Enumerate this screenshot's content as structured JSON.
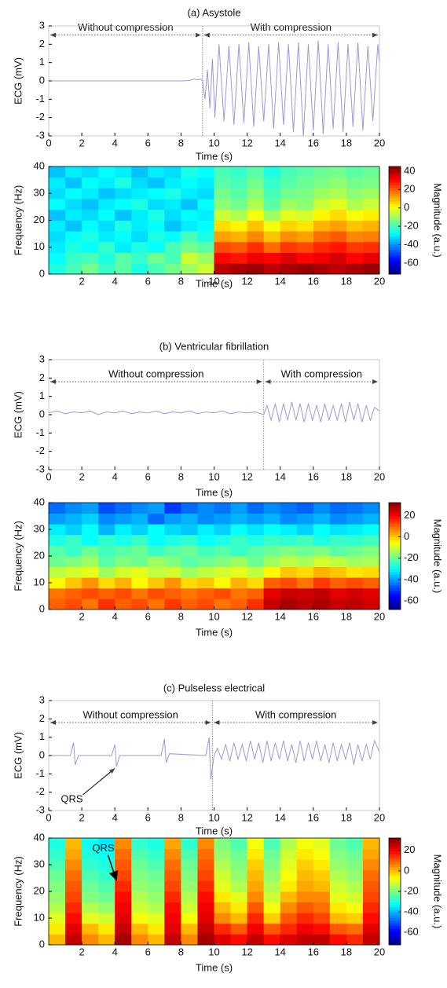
{
  "chart_data": [
    {
      "type": "line",
      "title": "(a) Asystole",
      "xlabel": "Time (s)",
      "ylabel": "ECG (mV)",
      "color": "#9a9ad8",
      "xlim": [
        0,
        20
      ],
      "ylim": [
        -3,
        3
      ],
      "xticks": [
        0,
        2,
        4,
        6,
        8,
        10,
        12,
        14,
        16,
        18,
        20
      ],
      "yticks": [
        -3,
        -2,
        -1,
        0,
        1,
        2,
        3
      ],
      "separator_x": 9.3,
      "annotations": [
        {
          "text": "Without compression",
          "x_start": 0,
          "x_end": 9.3,
          "y": 2.5
        },
        {
          "text": "With compression",
          "x_start": 9.3,
          "x_end": 20,
          "y": 2.5
        }
      ],
      "x": [
        0,
        4,
        8,
        8.5,
        8.8,
        9.0,
        9.2,
        9.3,
        9.45,
        9.6,
        9.75,
        9.9,
        10.05,
        10.3,
        10.6,
        10.9,
        11.2,
        11.5,
        11.8,
        12.1,
        12.4,
        12.7,
        13.0,
        13.3,
        13.6,
        13.9,
        14.2,
        14.5,
        14.8,
        15.1,
        15.4,
        15.7,
        16.0,
        16.3,
        16.6,
        16.9,
        17.2,
        17.5,
        17.8,
        18.1,
        18.4,
        18.7,
        19.0,
        19.3,
        19.6,
        19.9,
        20
      ],
      "values": [
        0,
        0,
        0,
        0.02,
        0.1,
        0.05,
        0.1,
        0,
        -1,
        0.6,
        -1.5,
        1.2,
        -2,
        2,
        -2.2,
        1.9,
        -2.4,
        2,
        -2.3,
        2.1,
        -2.5,
        1.9,
        -2.2,
        2,
        -2.6,
        2.1,
        -2.4,
        2,
        -2.8,
        2.1,
        -3,
        2,
        -2.7,
        2.2,
        -2.9,
        2,
        -2.6,
        2.1,
        -2.8,
        2,
        -2.5,
        2.1,
        -2.7,
        1.9,
        -2.2,
        2,
        1
      ]
    },
    {
      "type": "heatmap",
      "xlabel": "Time (s)",
      "ylabel": "Frequency (Hz)",
      "colormap": "jet",
      "xlim": [
        0,
        20
      ],
      "ylim": [
        0,
        40
      ],
      "xticks": [
        2,
        4,
        6,
        8,
        10,
        12,
        14,
        16,
        18,
        20
      ],
      "yticks": [
        0,
        10,
        20,
        30,
        40
      ],
      "x_edges": [
        0,
        1,
        2,
        3,
        4,
        5,
        6,
        7,
        8,
        9,
        10,
        11,
        12,
        13,
        14,
        15,
        16,
        17,
        18,
        19,
        20
      ],
      "y_edges": [
        0,
        4,
        8,
        12,
        16,
        20,
        24,
        28,
        32,
        36,
        40
      ],
      "colorbar": {
        "label": "Magnitude (a.u.)",
        "lim": [
          -72,
          45
        ],
        "ticks": [
          40,
          20,
          0,
          -20,
          -40,
          -60
        ]
      },
      "values": [
        [
          -25,
          -20,
          -15,
          -22,
          -18,
          -25,
          -20,
          -15,
          -10,
          -5,
          38,
          40,
          42,
          38,
          40,
          42,
          40,
          38,
          40,
          42
        ],
        [
          -28,
          -22,
          -20,
          -25,
          -18,
          -22,
          -15,
          -20,
          -5,
          -10,
          30,
          28,
          32,
          30,
          34,
          30,
          32,
          35,
          30,
          33
        ],
        [
          -30,
          -25,
          -28,
          -22,
          -30,
          -25,
          -28,
          -20,
          -15,
          -18,
          22,
          20,
          25,
          18,
          24,
          22,
          26,
          28,
          24,
          25
        ],
        [
          -32,
          -28,
          -25,
          -30,
          -28,
          -32,
          -25,
          -28,
          -20,
          -25,
          12,
          10,
          15,
          8,
          14,
          12,
          18,
          20,
          15,
          16
        ],
        [
          -30,
          -35,
          -28,
          -32,
          -25,
          -30,
          -28,
          -35,
          -30,
          -28,
          5,
          2,
          8,
          0,
          6,
          4,
          10,
          12,
          8,
          10
        ],
        [
          -35,
          -30,
          -32,
          -28,
          -35,
          -30,
          -25,
          -32,
          -28,
          -30,
          -5,
          -8,
          0,
          -10,
          -2,
          -4,
          2,
          5,
          0,
          3
        ],
        [
          -28,
          -32,
          -35,
          -30,
          -28,
          -25,
          -32,
          -30,
          -35,
          -28,
          -12,
          -15,
          -8,
          -18,
          -10,
          -12,
          -5,
          -2,
          -8,
          -5
        ],
        [
          -32,
          -28,
          -30,
          -35,
          -32,
          -30,
          -28,
          -25,
          -30,
          -32,
          -15,
          -18,
          -12,
          -20,
          -15,
          -14,
          -10,
          -8,
          -12,
          -10
        ],
        [
          -30,
          -35,
          -28,
          -30,
          -25,
          -32,
          -35,
          -30,
          -28,
          -30,
          -18,
          -20,
          -15,
          -22,
          -18,
          -16,
          -14,
          -12,
          -15,
          -14
        ],
        [
          -35,
          -30,
          -32,
          -28,
          -30,
          -35,
          -30,
          -32,
          -25,
          -28,
          -20,
          -22,
          -18,
          -25,
          -20,
          -18,
          -16,
          -15,
          -18,
          -16
        ]
      ]
    },
    {
      "type": "line",
      "title": "(b) Ventricular fibrillation",
      "xlabel": "Time (s)",
      "ylabel": "ECG (mV)",
      "color": "#9a9ad8",
      "xlim": [
        0,
        20
      ],
      "ylim": [
        -3,
        3
      ],
      "xticks": [
        0,
        2,
        4,
        6,
        8,
        10,
        12,
        14,
        16,
        18,
        20
      ],
      "yticks": [
        -3,
        -2,
        -1,
        0,
        1,
        2,
        3
      ],
      "separator_x": 13,
      "annotations": [
        {
          "text": "Without compression",
          "x_start": 0,
          "x_end": 13,
          "y": 1.8
        },
        {
          "text": "With compression",
          "x_start": 13,
          "x_end": 20,
          "y": 1.8
        }
      ],
      "x": [
        0,
        0.5,
        1,
        1.5,
        2,
        2.5,
        3,
        3.5,
        4,
        4.5,
        5,
        5.5,
        6,
        6.5,
        7,
        7.5,
        8,
        8.5,
        9,
        9.5,
        10,
        10.5,
        11,
        11.5,
        12,
        12.5,
        13.0,
        13.2,
        13.45,
        13.7,
        13.95,
        14.2,
        14.45,
        14.7,
        14.95,
        15.2,
        15.45,
        15.7,
        15.95,
        16.2,
        16.45,
        16.7,
        16.95,
        17.2,
        17.45,
        17.7,
        17.95,
        18.2,
        18.45,
        18.7,
        18.95,
        19.2,
        19.45,
        19.7,
        20
      ],
      "values": [
        0.1,
        0.2,
        0.05,
        0.15,
        0.1,
        0.2,
        0.0,
        0.15,
        0.1,
        0.2,
        0.05,
        0.15,
        0.1,
        0.2,
        0.05,
        0.15,
        0.1,
        0.2,
        0.05,
        0.15,
        0.1,
        0.2,
        0.05,
        0.15,
        0.1,
        0.15,
        0.0,
        0.5,
        -0.3,
        0.6,
        -0.4,
        0.6,
        -0.3,
        0.7,
        -0.3,
        0.6,
        -0.4,
        0.6,
        -0.3,
        0.5,
        -0.4,
        0.6,
        -0.3,
        0.5,
        -0.3,
        0.6,
        -0.4,
        0.7,
        -0.3,
        0.6,
        -0.4,
        0.5,
        -0.3,
        0.4,
        0.2
      ]
    },
    {
      "type": "heatmap",
      "xlabel": "Time (s)",
      "ylabel": "Frequency (Hz)",
      "colormap": "jet",
      "xlim": [
        0,
        20
      ],
      "ylim": [
        0,
        40
      ],
      "xticks": [
        2,
        4,
        6,
        8,
        10,
        12,
        14,
        16,
        18,
        20
      ],
      "yticks": [
        0,
        10,
        20,
        30,
        40
      ],
      "x_edges": [
        0,
        1,
        2,
        3,
        4,
        5,
        6,
        7,
        8,
        9,
        10,
        11,
        12,
        13,
        14,
        15,
        16,
        17,
        18,
        19,
        20
      ],
      "y_edges": [
        0,
        4,
        8,
        12,
        16,
        20,
        24,
        28,
        32,
        36,
        40
      ],
      "colorbar": {
        "label": "Magnitude (a.u.)",
        "lim": [
          -68,
          32
        ],
        "ticks": [
          20,
          0,
          -20,
          -40,
          -60
        ]
      },
      "values": [
        [
          10,
          12,
          8,
          15,
          10,
          12,
          8,
          14,
          10,
          12,
          8,
          10,
          15,
          25,
          28,
          26,
          28,
          25,
          26,
          24
        ],
        [
          8,
          10,
          12,
          10,
          12,
          8,
          12,
          10,
          8,
          10,
          12,
          8,
          10,
          22,
          25,
          24,
          26,
          22,
          24,
          22
        ],
        [
          -5,
          0,
          5,
          -2,
          2,
          -5,
          0,
          5,
          -2,
          0,
          -5,
          2,
          -2,
          10,
          12,
          8,
          14,
          10,
          12,
          10
        ],
        [
          -12,
          -10,
          -8,
          -15,
          -10,
          -8,
          -12,
          -10,
          -15,
          -12,
          -10,
          -8,
          -12,
          -5,
          0,
          -2,
          2,
          0,
          -3,
          -2
        ],
        [
          -20,
          -18,
          -15,
          -22,
          -18,
          -20,
          -15,
          -18,
          -22,
          -20,
          -18,
          -15,
          -20,
          -15,
          -12,
          -14,
          -10,
          -12,
          -15,
          -14
        ],
        [
          -22,
          -25,
          -20,
          -24,
          -22,
          -20,
          -25,
          -22,
          -20,
          -24,
          -22,
          -25,
          -22,
          -20,
          -18,
          -20,
          -18,
          -22,
          -20,
          -18
        ],
        [
          -28,
          -25,
          -30,
          -26,
          -28,
          -25,
          -30,
          -28,
          -26,
          -30,
          -28,
          -25,
          -28,
          -25,
          -26,
          -24,
          -28,
          -25,
          -26,
          -24
        ],
        [
          -32,
          -35,
          -30,
          -38,
          -32,
          -35,
          -30,
          -34,
          -36,
          -32,
          -35,
          -30,
          -33,
          -30,
          -32,
          -35,
          -30,
          -33,
          -32,
          -30
        ],
        [
          -40,
          -38,
          -35,
          -42,
          -40,
          -38,
          -45,
          -40,
          -38,
          -42,
          -40,
          -38,
          -40,
          -38,
          -42,
          -40,
          -38,
          -42,
          -40,
          -38
        ],
        [
          -45,
          -42,
          -40,
          -48,
          -45,
          -42,
          -40,
          -50,
          -45,
          -42,
          -44,
          -40,
          -45,
          -42,
          -44,
          -46,
          -42,
          -45,
          -44,
          -42
        ]
      ]
    },
    {
      "type": "line",
      "title": "(c) Pulseless electrical",
      "xlabel": "Time (s)",
      "ylabel": "ECG (mV)",
      "color": "#9a9ad8",
      "xlim": [
        0,
        20
      ],
      "ylim": [
        -3,
        3
      ],
      "xticks": [
        0,
        2,
        4,
        6,
        8,
        10,
        12,
        14,
        16,
        18,
        20
      ],
      "yticks": [
        -3,
        -2,
        -1,
        0,
        1,
        2,
        3
      ],
      "separator_x": 9.9,
      "annotations": [
        {
          "text": "Without compression",
          "x_start": 0,
          "x_end": 9.9,
          "y": 1.8
        },
        {
          "text": "With compression",
          "x_start": 9.9,
          "x_end": 20,
          "y": 1.8
        }
      ],
      "pointer": {
        "text": "QRS",
        "text_x": 1.4,
        "text_y": -2.4,
        "arrow_x": 4,
        "arrow_y": -0.7
      },
      "x": [
        0,
        1.3,
        1.5,
        1.6,
        1.8,
        3.8,
        4.0,
        4.1,
        4.3,
        6.8,
        7.0,
        7.1,
        7.3,
        9.5,
        9.7,
        9.8,
        10,
        10.2,
        10.45,
        10.7,
        10.95,
        11.2,
        11.45,
        11.7,
        11.95,
        12.2,
        12.45,
        12.7,
        12.95,
        13.2,
        13.45,
        13.7,
        13.95,
        14.2,
        14.45,
        14.7,
        14.95,
        15.2,
        15.45,
        15.7,
        15.95,
        16.2,
        16.45,
        16.7,
        16.95,
        17.2,
        17.45,
        17.7,
        17.95,
        18.2,
        18.45,
        18.7,
        18.95,
        19.2,
        19.45,
        19.7,
        20
      ],
      "values": [
        0,
        0,
        0.7,
        -0.5,
        0,
        0,
        0.6,
        -0.6,
        0,
        0,
        0.9,
        -0.4,
        0.1,
        0,
        1,
        -1.3,
        0,
        0.4,
        -0.2,
        0.6,
        -0.3,
        0.7,
        -0.2,
        0.6,
        -0.3,
        0.8,
        -0.2,
        0.7,
        -0.4,
        0.8,
        -0.3,
        0.7,
        -0.2,
        0.8,
        -0.3,
        0.6,
        -0.4,
        0.8,
        -0.3,
        0.7,
        -0.2,
        0.8,
        -0.3,
        0.6,
        -0.4,
        0.7,
        -0.3,
        0.6,
        -0.2,
        0.7,
        -0.5,
        0.6,
        -0.3,
        0.6,
        -0.2,
        0.8,
        0.2
      ]
    },
    {
      "type": "heatmap",
      "xlabel": "Time (s)",
      "ylabel": "Frequency (Hz)",
      "colormap": "jet",
      "xlim": [
        0,
        20
      ],
      "ylim": [
        0,
        40
      ],
      "xticks": [
        2,
        4,
        6,
        8,
        10,
        12,
        14,
        16,
        18,
        20
      ],
      "yticks": [
        0,
        10,
        20,
        30,
        40
      ],
      "x_edges": [
        0,
        1,
        2,
        3,
        4,
        5,
        6,
        7,
        8,
        9,
        10,
        11,
        12,
        13,
        14,
        15,
        16,
        17,
        18,
        19,
        20
      ],
      "y_edges": [
        0,
        4,
        8,
        12,
        16,
        20,
        24,
        28,
        32,
        36,
        40
      ],
      "colorbar": {
        "label": "Magnitude (a.u.)",
        "lim": [
          -72,
          32
        ],
        "ticks": [
          20,
          0,
          -20,
          -40,
          -60
        ]
      },
      "pointer": {
        "text": "QRS",
        "text_x": 3.3,
        "text_y": 36,
        "arrow_x": 4.1,
        "arrow_y": 24
      },
      "values": [
        [
          0,
          25,
          5,
          0,
          28,
          5,
          0,
          25,
          5,
          28,
          22,
          18,
          25,
          18,
          22,
          25,
          25,
          18,
          15,
          25
        ],
        [
          -5,
          22,
          0,
          -5,
          25,
          0,
          -5,
          22,
          0,
          25,
          15,
          10,
          20,
          10,
          15,
          20,
          18,
          10,
          8,
          22
        ],
        [
          -10,
          18,
          -10,
          -12,
          22,
          -8,
          -10,
          20,
          -8,
          22,
          5,
          0,
          15,
          -2,
          10,
          15,
          12,
          0,
          -2,
          18
        ],
        [
          -15,
          15,
          -15,
          -18,
          20,
          -12,
          -15,
          18,
          -12,
          20,
          0,
          -5,
          10,
          -8,
          5,
          10,
          8,
          -5,
          -8,
          15
        ],
        [
          -18,
          12,
          -20,
          -22,
          18,
          -15,
          -18,
          15,
          -15,
          18,
          -5,
          -10,
          5,
          -12,
          0,
          5,
          5,
          -10,
          -12,
          12
        ],
        [
          -20,
          10,
          -22,
          -25,
          15,
          -18,
          -20,
          12,
          -18,
          15,
          -10,
          -15,
          2,
          -15,
          -5,
          2,
          0,
          -12,
          -15,
          10
        ],
        [
          -22,
          8,
          -25,
          -28,
          12,
          -20,
          -22,
          10,
          -20,
          12,
          -12,
          -18,
          0,
          -18,
          -8,
          0,
          -2,
          -15,
          -18,
          8
        ],
        [
          -25,
          5,
          -28,
          -30,
          10,
          -22,
          -25,
          8,
          -22,
          10,
          -15,
          -20,
          -2,
          -20,
          -10,
          -2,
          -5,
          -18,
          -20,
          5
        ],
        [
          -28,
          2,
          -30,
          -32,
          8,
          -25,
          -28,
          5,
          -25,
          8,
          -18,
          -22,
          -5,
          -22,
          -12,
          -5,
          -8,
          -20,
          -22,
          2
        ],
        [
          -30,
          0,
          -32,
          -35,
          5,
          -28,
          -30,
          2,
          -28,
          5,
          -20,
          -25,
          -8,
          -25,
          -15,
          -8,
          -10,
          -22,
          -25,
          0
        ]
      ]
    }
  ]
}
